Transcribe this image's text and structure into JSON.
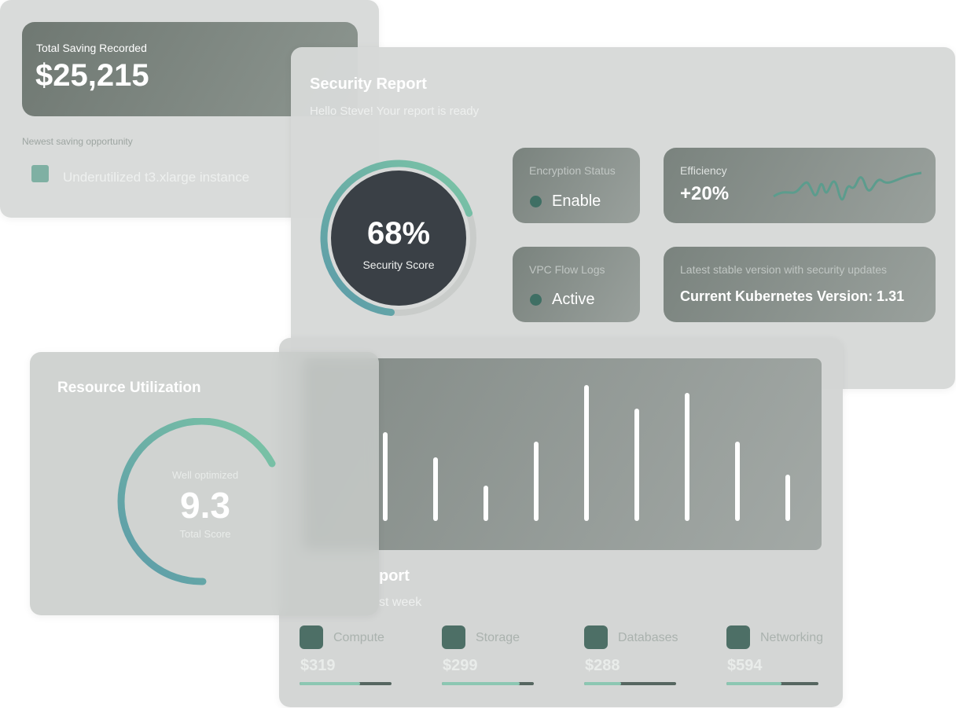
{
  "saving": {
    "title": "Total Saving Recorded",
    "amount": "$25,215",
    "subtitle": "Newest saving opportunity",
    "item": "Underutilized t3.xlarge instance"
  },
  "security": {
    "title": "Security Report",
    "greeting": "Hello Steve! Your report is ready",
    "score": "68%",
    "score_value": 68,
    "score_label": "Security Score",
    "tiles": [
      {
        "label": "Encryption Status",
        "value": "Enable"
      },
      {
        "label": "Efficiency",
        "value": "+20%"
      },
      {
        "label": "VPC Flow Logs",
        "value": "Active"
      },
      {
        "label": "Latest stable version with security updates",
        "value": "Current Kubernetes Version: 1.31"
      }
    ]
  },
  "resource": {
    "title": "Resource Utilization",
    "status": "Well optimized",
    "score": "9.3",
    "score_label": "Total Score"
  },
  "cost": {
    "title_fragment": "port",
    "subtitle_fragment": "st week",
    "bars": [
      107,
      75,
      39,
      95,
      167,
      137,
      157,
      95,
      53
    ],
    "items": [
      {
        "name": "Compute",
        "amount": "$319"
      },
      {
        "name": "Storage",
        "amount": "$299"
      },
      {
        "name": "Databases",
        "amount": "$288"
      },
      {
        "name": "Networking",
        "amount": "$594"
      }
    ]
  }
}
